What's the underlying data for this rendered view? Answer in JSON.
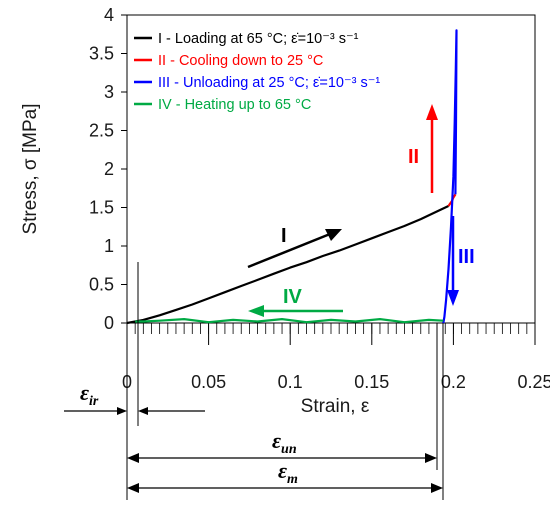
{
  "chart_data": {
    "type": "line",
    "xlabel": "Strain, ε",
    "ylabel": "Stress, σ  [MPa]",
    "xlim": [
      0,
      0.25
    ],
    "ylim": [
      0,
      4
    ],
    "x_ticks": [
      "0",
      "0.05",
      "0.1",
      "0.15",
      "0.2",
      "0.25"
    ],
    "y_ticks": [
      "0",
      "0.5",
      "1",
      "1.5",
      "2",
      "2.5",
      "3",
      "3.5",
      "4"
    ],
    "legend_position": "top-left",
    "series": [
      {
        "name": "I - Loading at 65 °C; ε̇=10⁻³ s⁻¹",
        "color": "#000000",
        "x": [
          0.0,
          0.01,
          0.02,
          0.03,
          0.04,
          0.05,
          0.06,
          0.07,
          0.08,
          0.09,
          0.1,
          0.11,
          0.12,
          0.13,
          0.14,
          0.15,
          0.16,
          0.17,
          0.18,
          0.19,
          0.197
        ],
        "y": [
          0.0,
          0.04,
          0.1,
          0.17,
          0.24,
          0.32,
          0.4,
          0.48,
          0.56,
          0.64,
          0.72,
          0.79,
          0.87,
          0.94,
          1.02,
          1.1,
          1.18,
          1.26,
          1.35,
          1.45,
          1.52
        ]
      },
      {
        "name": "II - Cooling down to 25 °C",
        "color": "#ff0000",
        "x": [
          0.197,
          0.198,
          0.199,
          0.2,
          0.2012
        ],
        "y": [
          1.52,
          1.55,
          1.58,
          1.63,
          1.67
        ]
      },
      {
        "name": "III - Unloading at 25 °C; ε̇=10⁻³ s⁻¹",
        "color": "#0000ff",
        "x": [
          0.2012,
          0.2016,
          0.2019,
          0.2015,
          0.2008,
          0.2,
          0.1985,
          0.197,
          0.1955,
          0.1945,
          0.1938
        ],
        "y": [
          1.67,
          2.6,
          3.8,
          3.3,
          2.6,
          1.9,
          1.25,
          0.7,
          0.3,
          0.08,
          0.0
        ]
      },
      {
        "name": "IV - Heating up to 65 °C",
        "color": "#00aa44",
        "x": [
          0.1938,
          0.185,
          0.17,
          0.155,
          0.14,
          0.125,
          0.11,
          0.095,
          0.08,
          0.065,
          0.05,
          0.035,
          0.02,
          0.01,
          0.005
        ],
        "y": [
          0.03,
          0.04,
          0.01,
          0.05,
          0.02,
          0.04,
          0.01,
          0.05,
          0.02,
          0.04,
          0.01,
          0.05,
          0.03,
          0.02,
          0.02
        ]
      }
    ],
    "annotations": {
      "roman_labels": [
        "I",
        "II",
        "III",
        "IV"
      ],
      "strain_labels": [
        {
          "base": "ε",
          "sub": "ir"
        },
        {
          "base": "ε",
          "sub": "un"
        },
        {
          "base": "ε",
          "sub": "m"
        }
      ]
    }
  }
}
